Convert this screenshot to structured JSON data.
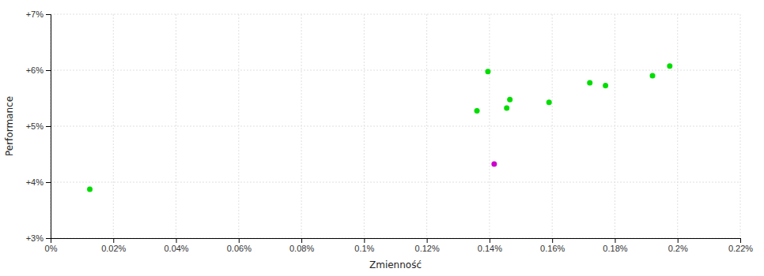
{
  "chart_data": {
    "type": "scatter",
    "xlabel": "Zmienność",
    "ylabel": "Performance",
    "xlim": [
      0.0,
      0.0022
    ],
    "ylim": [
      0.03,
      0.07
    ],
    "xticks": [
      {
        "value": 0.0,
        "label": "0%"
      },
      {
        "value": 0.0002,
        "label": "0.02%"
      },
      {
        "value": 0.0004,
        "label": "0.04%"
      },
      {
        "value": 0.0006,
        "label": "0.06%"
      },
      {
        "value": 0.0008,
        "label": "0.08%"
      },
      {
        "value": 0.001,
        "label": "0.1%"
      },
      {
        "value": 0.0012,
        "label": "0.12%"
      },
      {
        "value": 0.0014,
        "label": "0.14%"
      },
      {
        "value": 0.0016,
        "label": "0.16%"
      },
      {
        "value": 0.0018,
        "label": "0.18%"
      },
      {
        "value": 0.002,
        "label": "0.2%"
      },
      {
        "value": 0.0022,
        "label": "0.22%"
      }
    ],
    "yticks": [
      {
        "value": 0.03,
        "label": "+3%"
      },
      {
        "value": 0.04,
        "label": "+4%"
      },
      {
        "value": 0.05,
        "label": "+5%"
      },
      {
        "value": 0.06,
        "label": "+6%"
      },
      {
        "value": 0.07,
        "label": "+7%"
      }
    ],
    "grid": true,
    "series": [
      {
        "color": "#00dd00",
        "x": [
          0.000125,
          0.00136,
          0.001395,
          0.001455,
          0.001465,
          0.00159,
          0.00172,
          0.00177,
          0.00192,
          0.001975
        ],
        "values": [
          0.03875,
          0.05275,
          0.05975,
          0.05325,
          0.05475,
          0.05425,
          0.05775,
          0.05725,
          0.059,
          0.06075
        ]
      },
      {
        "color": "#cc00cc",
        "x": [
          0.001415
        ],
        "values": [
          0.04325
        ]
      }
    ]
  }
}
